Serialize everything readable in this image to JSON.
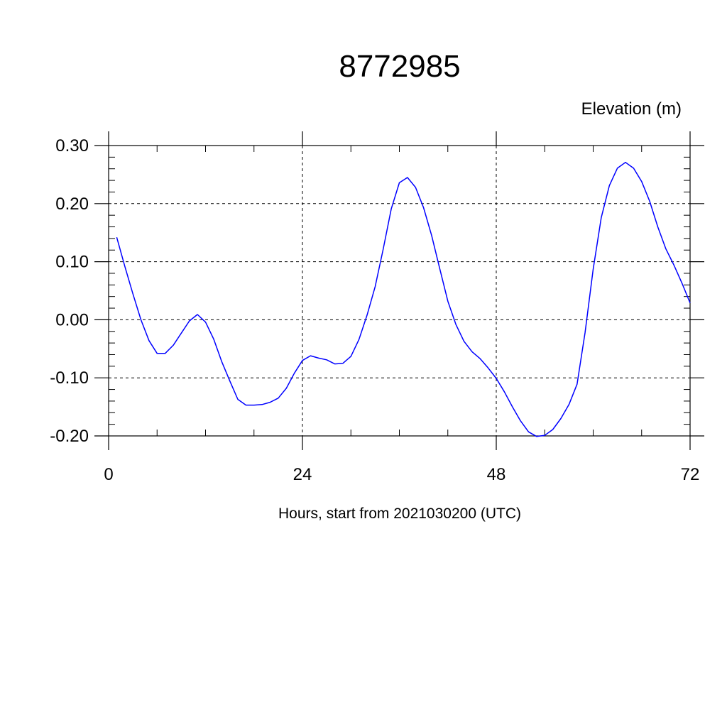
{
  "chart_data": {
    "type": "line",
    "title": "8772985",
    "ylabel": "Elevation (m)",
    "xlabel": "Hours, start from 2021030200 (UTC)",
    "xlim": [
      0,
      72
    ],
    "ylim": [
      -0.2,
      0.3
    ],
    "xticks": [
      0,
      24,
      48,
      72
    ],
    "xtick_labels": [
      "0",
      "24",
      "48",
      "72"
    ],
    "yticks": [
      -0.2,
      -0.1,
      0.0,
      0.1,
      0.2,
      0.3
    ],
    "ytick_labels": [
      "-0.20",
      "-0.10",
      "0.00",
      "0.10",
      "0.20",
      "0.30"
    ],
    "grid": "dashed",
    "line_color": "#0000ff",
    "series": [
      {
        "x": [
          1,
          2,
          3,
          4,
          5,
          6,
          7,
          8,
          9,
          10,
          11,
          12,
          13,
          14,
          15,
          16,
          17,
          18,
          19,
          20,
          21,
          22,
          23,
          24,
          25,
          26,
          27,
          28,
          29,
          30,
          31,
          32,
          33,
          34,
          35,
          36,
          37,
          38,
          39,
          40,
          41,
          42,
          43,
          44,
          45,
          46,
          47,
          48,
          49,
          50,
          51,
          52,
          53,
          54,
          55,
          56,
          57,
          58,
          59,
          60,
          61,
          62,
          63,
          64,
          65,
          66,
          67,
          68,
          69,
          70,
          71,
          72
        ],
        "values": [
          0.142,
          0.092,
          0.045,
          0.0,
          -0.036,
          -0.058,
          -0.058,
          -0.044,
          -0.023,
          -0.002,
          0.009,
          -0.004,
          -0.033,
          -0.072,
          -0.105,
          -0.137,
          -0.147,
          -0.147,
          -0.146,
          -0.142,
          -0.135,
          -0.118,
          -0.092,
          -0.07,
          -0.062,
          -0.066,
          -0.069,
          -0.076,
          -0.075,
          -0.063,
          -0.034,
          0.008,
          0.057,
          0.122,
          0.191,
          0.236,
          0.245,
          0.228,
          0.193,
          0.145,
          0.088,
          0.032,
          -0.008,
          -0.037,
          -0.055,
          -0.067,
          -0.083,
          -0.101,
          -0.124,
          -0.15,
          -0.174,
          -0.193,
          -0.201,
          -0.199,
          -0.189,
          -0.17,
          -0.146,
          -0.111,
          -0.022,
          0.087,
          0.176,
          0.231,
          0.261,
          0.271,
          0.261,
          0.238,
          0.204,
          0.16,
          0.122,
          0.094,
          0.063,
          0.029
        ]
      }
    ]
  }
}
